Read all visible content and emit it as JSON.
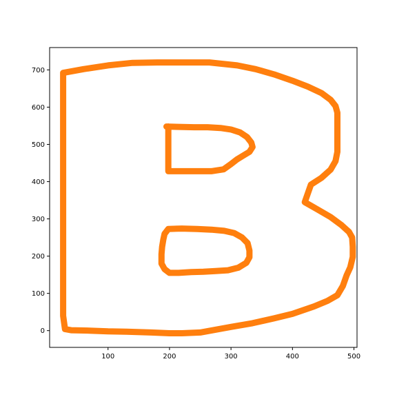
{
  "chart_data": {
    "type": "line",
    "title": "",
    "xlabel": "",
    "ylabel": "",
    "xlim": [
      5,
      505
    ],
    "ylim": [
      -45,
      760
    ],
    "grid": false,
    "legend": false,
    "x_ticks": [
      100,
      200,
      300,
      400,
      500
    ],
    "y_ticks": [
      0,
      100,
      200,
      300,
      400,
      500,
      600,
      700
    ],
    "x_tick_labels": [
      "100",
      "200",
      "300",
      "400",
      "500"
    ],
    "y_tick_labels": [
      "0",
      "100",
      "200",
      "300",
      "400",
      "500",
      "600",
      "700"
    ],
    "series": [
      {
        "color": "#ff7f0e",
        "points": [
          [
            27,
            692
          ],
          [
            60,
            702
          ],
          [
            100,
            712
          ],
          [
            140,
            719
          ],
          [
            180,
            720
          ],
          [
            220,
            720
          ],
          [
            265,
            720
          ],
          [
            310,
            712
          ],
          [
            340,
            702
          ],
          [
            370,
            688
          ],
          [
            400,
            671
          ],
          [
            425,
            655
          ],
          [
            447,
            638
          ],
          [
            462,
            620
          ],
          [
            470,
            603
          ],
          [
            473,
            585
          ],
          [
            473,
            560
          ],
          [
            473,
            520
          ],
          [
            473,
            480
          ],
          [
            470,
            455
          ],
          [
            462,
            432
          ],
          [
            447,
            410
          ],
          [
            430,
            392
          ],
          [
            420,
            345
          ],
          [
            440,
            326
          ],
          [
            462,
            305
          ],
          [
            480,
            283
          ],
          [
            492,
            265
          ],
          [
            497,
            250
          ],
          [
            498,
            225
          ],
          [
            498,
            198
          ],
          [
            494,
            170
          ],
          [
            488,
            148
          ],
          [
            482,
            120
          ],
          [
            473,
            95
          ],
          [
            457,
            80
          ],
          [
            435,
            65
          ],
          [
            400,
            45
          ],
          [
            370,
            33
          ],
          [
            335,
            20
          ],
          [
            300,
            10
          ],
          [
            250,
            -5
          ],
          [
            220,
            -7
          ],
          [
            200,
            -7
          ],
          [
            170,
            -5
          ],
          [
            130,
            -3
          ],
          [
            100,
            -2
          ],
          [
            70,
            0
          ],
          [
            40,
            1
          ],
          [
            30,
            4
          ],
          [
            27,
            40
          ],
          [
            27,
            110
          ],
          [
            27,
            230
          ],
          [
            27,
            360
          ],
          [
            27,
            450
          ],
          [
            27,
            560
          ],
          [
            27,
            692
          ]
        ]
      },
      {
        "color": "#ff7f0e",
        "points": [
          [
            195,
            548
          ],
          [
            215,
            547
          ],
          [
            240,
            546
          ],
          [
            262,
            546
          ],
          [
            283,
            544
          ],
          [
            300,
            540
          ],
          [
            315,
            532
          ],
          [
            326,
            520
          ],
          [
            333,
            505
          ],
          [
            335,
            493
          ],
          [
            330,
            480
          ],
          [
            320,
            470
          ],
          [
            310,
            460
          ],
          [
            300,
            447
          ],
          [
            288,
            433
          ],
          [
            268,
            428
          ],
          [
            243,
            428
          ],
          [
            220,
            428
          ],
          [
            198,
            428
          ],
          [
            198,
            450
          ],
          [
            198,
            480
          ],
          [
            198,
            520
          ],
          [
            198,
            548
          ]
        ]
      },
      {
        "color": "#ff7f0e",
        "points": [
          [
            198,
            273
          ],
          [
            220,
            274
          ],
          [
            245,
            273
          ],
          [
            268,
            271
          ],
          [
            289,
            268
          ],
          [
            305,
            262
          ],
          [
            318,
            250
          ],
          [
            327,
            235
          ],
          [
            330,
            215
          ],
          [
            330,
            197
          ],
          [
            325,
            182
          ],
          [
            312,
            169
          ],
          [
            295,
            162
          ],
          [
            275,
            160
          ],
          [
            255,
            158
          ],
          [
            235,
            157
          ],
          [
            215,
            155
          ],
          [
            200,
            155
          ],
          [
            192,
            165
          ],
          [
            187,
            180
          ],
          [
            187,
            205
          ],
          [
            188,
            225
          ],
          [
            190,
            245
          ],
          [
            192,
            260
          ],
          [
            198,
            273
          ]
        ]
      }
    ]
  }
}
